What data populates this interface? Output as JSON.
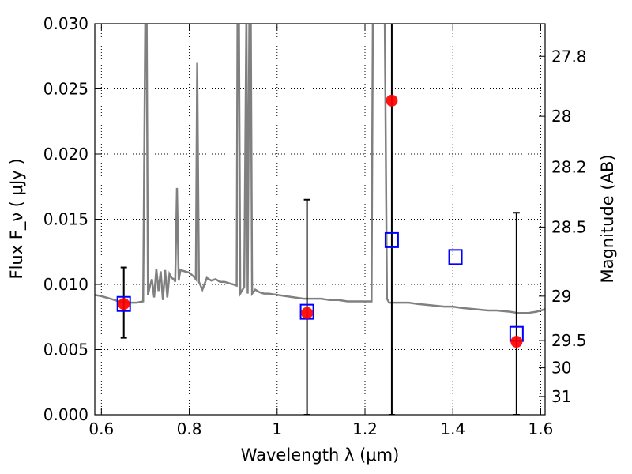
{
  "chart_data": {
    "type": "scatter",
    "xlabel": "Wavelength  λ (μm)",
    "ylabel": "Flux  F_ν  ( μJy )",
    "y2label": "Magnitude (AB)",
    "xlim": [
      0.585,
      1.61
    ],
    "ylim": [
      0.0,
      0.03
    ],
    "grid": true,
    "x_ticks": [
      0.6,
      0.8,
      1.0,
      1.2,
      1.4,
      1.6
    ],
    "x_tick_labels": [
      "0.6",
      "0.8",
      "1",
      "1.2",
      "1.4",
      "1.6"
    ],
    "y_ticks": [
      0.0,
      0.005,
      0.01,
      0.015,
      0.02,
      0.025,
      0.03
    ],
    "y_tick_labels": [
      "0.000",
      "0.005",
      "0.010",
      "0.015",
      "0.020",
      "0.025",
      "0.030"
    ],
    "mag_ticks": [
      {
        "label": "27.8",
        "flux": 0.0275
      },
      {
        "label": "28",
        "flux": 0.0229
      },
      {
        "label": "28.2",
        "flux": 0.019
      },
      {
        "label": "28.5",
        "flux": 0.0144
      },
      {
        "label": "29",
        "flux": 0.0091
      },
      {
        "label": "29.5",
        "flux": 0.0057
      },
      {
        "label": "30",
        "flux": 0.0036
      },
      {
        "label": "31",
        "flux": 0.0014
      }
    ],
    "colors": {
      "sed": "#808080",
      "observed": "#ff0000",
      "model": "#0000ff",
      "errorbar": "#000000"
    },
    "series": [
      {
        "kind": "model_sed_line",
        "points": [
          [
            0.585,
            0.0092
          ],
          [
            0.6,
            0.0091
          ],
          [
            0.62,
            0.0089
          ],
          [
            0.64,
            0.0087
          ],
          [
            0.66,
            0.0086
          ],
          [
            0.68,
            0.0086
          ],
          [
            0.695,
            0.0087
          ],
          [
            0.7,
            0.031
          ],
          [
            0.703,
            0.031
          ],
          [
            0.706,
            0.0092
          ],
          [
            0.71,
            0.0098
          ],
          [
            0.715,
            0.0104
          ],
          [
            0.72,
            0.009
          ],
          [
            0.725,
            0.0112
          ],
          [
            0.73,
            0.0095
          ],
          [
            0.735,
            0.011
          ],
          [
            0.74,
            0.0088
          ],
          [
            0.745,
            0.0111
          ],
          [
            0.75,
            0.009
          ],
          [
            0.755,
            0.0108
          ],
          [
            0.76,
            0.0105
          ],
          [
            0.765,
            0.0104
          ],
          [
            0.768,
            0.0102
          ],
          [
            0.772,
            0.0174
          ],
          [
            0.776,
            0.0103
          ],
          [
            0.78,
            0.0111
          ],
          [
            0.79,
            0.011
          ],
          [
            0.8,
            0.0109
          ],
          [
            0.81,
            0.0106
          ],
          [
            0.815,
            0.0104
          ],
          [
            0.818,
            0.027
          ],
          [
            0.822,
            0.0102
          ],
          [
            0.83,
            0.0096
          ],
          [
            0.84,
            0.0105
          ],
          [
            0.85,
            0.0103
          ],
          [
            0.86,
            0.0104
          ],
          [
            0.87,
            0.0102
          ],
          [
            0.88,
            0.0102
          ],
          [
            0.89,
            0.0101
          ],
          [
            0.9,
            0.01
          ],
          [
            0.908,
            0.0099
          ],
          [
            0.91,
            0.031
          ],
          [
            0.913,
            0.031
          ],
          [
            0.916,
            0.0093
          ],
          [
            0.925,
            0.0098
          ],
          [
            0.93,
            0.031
          ],
          [
            0.933,
            0.0093
          ],
          [
            0.937,
            0.031
          ],
          [
            0.94,
            0.031
          ],
          [
            0.943,
            0.0093
          ],
          [
            0.95,
            0.0096
          ],
          [
            0.96,
            0.0094
          ],
          [
            0.97,
            0.0093
          ],
          [
            0.98,
            0.0093
          ],
          [
            1.0,
            0.0092
          ],
          [
            1.02,
            0.0091
          ],
          [
            1.04,
            0.009
          ],
          [
            1.06,
            0.0089
          ],
          [
            1.08,
            0.0089
          ],
          [
            1.1,
            0.0089
          ],
          [
            1.12,
            0.0088
          ],
          [
            1.14,
            0.0088
          ],
          [
            1.16,
            0.0087
          ],
          [
            1.18,
            0.0087
          ],
          [
            1.2,
            0.0087
          ],
          [
            1.215,
            0.0087
          ],
          [
            1.218,
            0.031
          ],
          [
            1.245,
            0.031
          ],
          [
            1.25,
            0.0089
          ],
          [
            1.255,
            0.0086
          ],
          [
            1.28,
            0.0086
          ],
          [
            1.3,
            0.0086
          ],
          [
            1.32,
            0.0085
          ],
          [
            1.35,
            0.0084
          ],
          [
            1.38,
            0.0083
          ],
          [
            1.4,
            0.0083
          ],
          [
            1.42,
            0.0082
          ],
          [
            1.45,
            0.0081
          ],
          [
            1.48,
            0.008
          ],
          [
            1.5,
            0.008
          ],
          [
            1.53,
            0.0079
          ],
          [
            1.55,
            0.0078
          ],
          [
            1.57,
            0.0078
          ],
          [
            1.59,
            0.0079
          ],
          [
            1.61,
            0.0081
          ]
        ]
      },
      {
        "kind": "observed",
        "points": [
          {
            "x": 0.651,
            "y": 0.0085,
            "yerr_lo": 0.0059,
            "yerr_hi": 0.0113
          },
          {
            "x": 1.068,
            "y": 0.0078,
            "yerr_lo": 0.0,
            "yerr_hi": 0.0165
          },
          {
            "x": 1.261,
            "y": 0.0241,
            "yerr_lo": 0.0,
            "yerr_hi": 0.031
          },
          {
            "x": 1.545,
            "y": 0.0056,
            "yerr_lo": 0.0,
            "yerr_hi": 0.0155
          }
        ]
      },
      {
        "kind": "model_photometry",
        "points": [
          {
            "x": 0.651,
            "y": 0.0085
          },
          {
            "x": 1.068,
            "y": 0.0079
          },
          {
            "x": 1.261,
            "y": 0.0134
          },
          {
            "x": 1.406,
            "y": 0.0121
          },
          {
            "x": 1.545,
            "y": 0.0062
          }
        ]
      }
    ]
  }
}
